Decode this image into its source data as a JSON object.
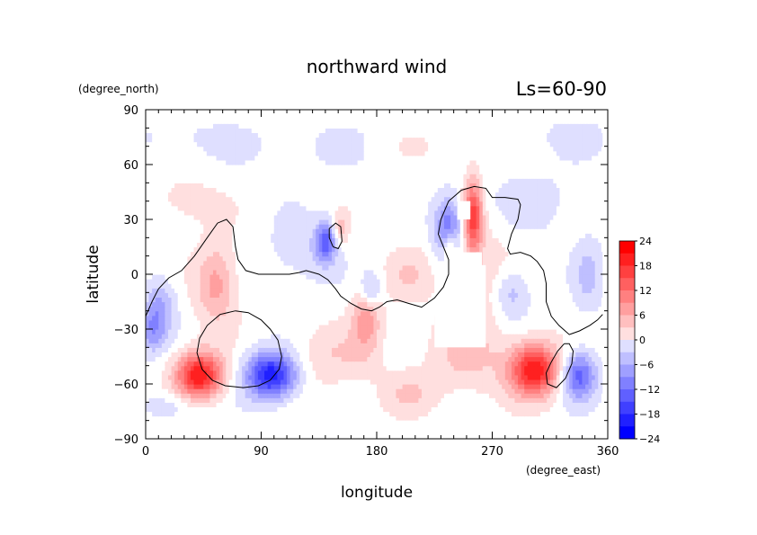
{
  "chart_data": {
    "type": "heatmap",
    "title": "northward wind",
    "subtitle": "Ls=60-90",
    "xlabel": "longitude",
    "ylabel": "latitude",
    "x_units": "(degree_east)",
    "y_units": "(degree_north)",
    "xlim": [
      0,
      360
    ],
    "ylim": [
      -90,
      90
    ],
    "x_ticks": [
      "0",
      "90",
      "180",
      "270",
      "360"
    ],
    "y_ticks": [
      "90",
      "60",
      "30",
      "0",
      "−30",
      "−60",
      "−90"
    ],
    "colorbar": {
      "ticks": [
        "24",
        "18",
        "12",
        "6",
        "0",
        "−6",
        "−12",
        "−18",
        "−24"
      ],
      "range": [
        -24,
        24
      ],
      "step": 3
    },
    "data_extent": {
      "lon": [
        0,
        356
      ],
      "lat": [
        -80,
        85
      ]
    },
    "missing_region": [
      {
        "lon": [
          243,
          253
        ],
        "lat": [
          30,
          40
        ]
      },
      {
        "lon": [
          240,
          262
        ],
        "lat": [
          -5,
          12
        ]
      },
      {
        "lon": [
          225,
          265
        ],
        "lat": [
          -40,
          5
        ]
      }
    ],
    "anomalies": [
      {
        "lon": 42,
        "lat": -55,
        "value": 22,
        "sx": 13,
        "sy": 9
      },
      {
        "lon": 98,
        "lat": -55,
        "value": -22,
        "sx": 14,
        "sy": 9
      },
      {
        "lon": 303,
        "lat": -52,
        "value": 22,
        "sx": 14,
        "sy": 10
      },
      {
        "lon": 337,
        "lat": -55,
        "value": -15,
        "sx": 10,
        "sy": 9
      },
      {
        "lon": 255,
        "lat": 32,
        "value": 18,
        "sx": 5,
        "sy": 14
      },
      {
        "lon": 236,
        "lat": 25,
        "value": -14,
        "sx": 8,
        "sy": 12
      },
      {
        "lon": 237,
        "lat": 15,
        "value": 9,
        "sx": 4,
        "sy": 6
      },
      {
        "lon": 140,
        "lat": 18,
        "value": -14,
        "sx": 6,
        "sy": 8
      },
      {
        "lon": 152,
        "lat": 25,
        "value": 7,
        "sx": 4,
        "sy": 6
      },
      {
        "lon": 172,
        "lat": -22,
        "value": 9,
        "sx": 8,
        "sy": 14
      },
      {
        "lon": 175,
        "lat": -8,
        "value": -9,
        "sx": 6,
        "sy": 7
      },
      {
        "lon": 55,
        "lat": -5,
        "value": 9,
        "sx": 11,
        "sy": 15
      },
      {
        "lon": 12,
        "lat": -15,
        "value": -7,
        "sx": 8,
        "sy": 10
      },
      {
        "lon": 5,
        "lat": -30,
        "value": -9,
        "sx": 8,
        "sy": 9
      },
      {
        "lon": 145,
        "lat": -45,
        "value": 4,
        "sx": 25,
        "sy": 12
      },
      {
        "lon": 250,
        "lat": -45,
        "value": 5,
        "sx": 22,
        "sy": 15
      },
      {
        "lon": 285,
        "lat": -10,
        "value": -7,
        "sx": 10,
        "sy": 10
      },
      {
        "lon": 345,
        "lat": 0,
        "value": -5,
        "sx": 8,
        "sy": 15
      },
      {
        "lon": 205,
        "lat": 0,
        "value": 4,
        "sx": 12,
        "sy": 10
      },
      {
        "lon": 30,
        "lat": 40,
        "value": 3,
        "sx": 20,
        "sy": 10
      },
      {
        "lon": 300,
        "lat": 40,
        "value": -3,
        "sx": 25,
        "sy": 12
      },
      {
        "lon": 140,
        "lat": 70,
        "value": -2,
        "sx": 60,
        "sy": 10
      },
      {
        "lon": 220,
        "lat": 70,
        "value": 2,
        "sx": 40,
        "sy": 8
      },
      {
        "lon": 20,
        "lat": 75,
        "value": -2,
        "sx": 30,
        "sy": 8
      },
      {
        "lon": 330,
        "lat": 75,
        "value": -2,
        "sx": 30,
        "sy": 8
      },
      {
        "lon": 260,
        "lat": 0,
        "value": 4,
        "sx": 20,
        "sy": 20
      },
      {
        "lon": 120,
        "lat": 10,
        "value": -3,
        "sx": 20,
        "sy": 15
      },
      {
        "lon": 205,
        "lat": -65,
        "value": 4,
        "sx": 15,
        "sy": 8
      },
      {
        "lon": 20,
        "lat": -72,
        "value": -4,
        "sx": 15,
        "sy": 6
      }
    ],
    "contours": [
      [
        [
          0,
          -23
        ],
        [
          5,
          -15
        ],
        [
          10,
          -8
        ],
        [
          18,
          -2
        ],
        [
          28,
          2
        ],
        [
          38,
          10
        ],
        [
          48,
          20
        ],
        [
          56,
          28
        ],
        [
          63,
          30
        ],
        [
          68,
          26
        ],
        [
          70,
          15
        ],
        [
          72,
          8
        ],
        [
          78,
          2
        ],
        [
          88,
          0
        ],
        [
          100,
          0
        ],
        [
          112,
          0
        ],
        [
          120,
          1
        ],
        [
          125,
          2
        ],
        [
          135,
          0
        ],
        [
          142,
          -3
        ],
        [
          148,
          -8
        ],
        [
          152,
          -12
        ],
        [
          160,
          -16
        ],
        [
          168,
          -19
        ],
        [
          176,
          -20
        ],
        [
          182,
          -18
        ],
        [
          188,
          -15
        ],
        [
          196,
          -14
        ],
        [
          205,
          -16
        ],
        [
          215,
          -18
        ],
        [
          225,
          -13
        ],
        [
          232,
          -7
        ],
        [
          236,
          0
        ],
        [
          236,
          8
        ],
        [
          232,
          15
        ],
        [
          228,
          22
        ],
        [
          230,
          30
        ],
        [
          236,
          40
        ],
        [
          246,
          46
        ],
        [
          256,
          48
        ],
        [
          265,
          47
        ],
        [
          270,
          42
        ],
        [
          280,
          42
        ],
        [
          290,
          41
        ],
        [
          292,
          38
        ],
        [
          290,
          30
        ],
        [
          285,
          22
        ],
        [
          282,
          14
        ],
        [
          284,
          11
        ],
        [
          292,
          12
        ],
        [
          300,
          10
        ],
        [
          305,
          7
        ],
        [
          310,
          2
        ],
        [
          312,
          -5
        ],
        [
          312,
          -15
        ],
        [
          316,
          -23
        ],
        [
          322,
          -28
        ],
        [
          330,
          -33
        ],
        [
          338,
          -31
        ],
        [
          346,
          -28
        ],
        [
          352,
          -25
        ],
        [
          356,
          -22
        ]
      ],
      [
        [
          70,
          -20
        ],
        [
          80,
          -21
        ],
        [
          90,
          -25
        ],
        [
          97,
          -30
        ],
        [
          103,
          -36
        ],
        [
          106,
          -45
        ],
        [
          104,
          -52
        ],
        [
          97,
          -58
        ],
        [
          88,
          -61
        ],
        [
          76,
          -62
        ],
        [
          62,
          -61
        ],
        [
          52,
          -58
        ],
        [
          44,
          -52
        ],
        [
          40,
          -43
        ],
        [
          42,
          -35
        ],
        [
          48,
          -28
        ],
        [
          58,
          -22
        ],
        [
          70,
          -20
        ]
      ],
      [
        [
          146,
          15
        ],
        [
          143,
          20
        ],
        [
          143,
          25
        ],
        [
          148,
          28
        ],
        [
          152,
          26
        ],
        [
          153,
          18
        ],
        [
          150,
          14
        ],
        [
          146,
          15
        ]
      ],
      [
        [
          326,
          -38
        ],
        [
          321,
          -42
        ],
        [
          316,
          -48
        ],
        [
          312,
          -54
        ],
        [
          313,
          -60
        ],
        [
          320,
          -62
        ],
        [
          327,
          -57
        ],
        [
          332,
          -49
        ],
        [
          333,
          -42
        ],
        [
          330,
          -38
        ],
        [
          326,
          -38
        ]
      ]
    ]
  }
}
